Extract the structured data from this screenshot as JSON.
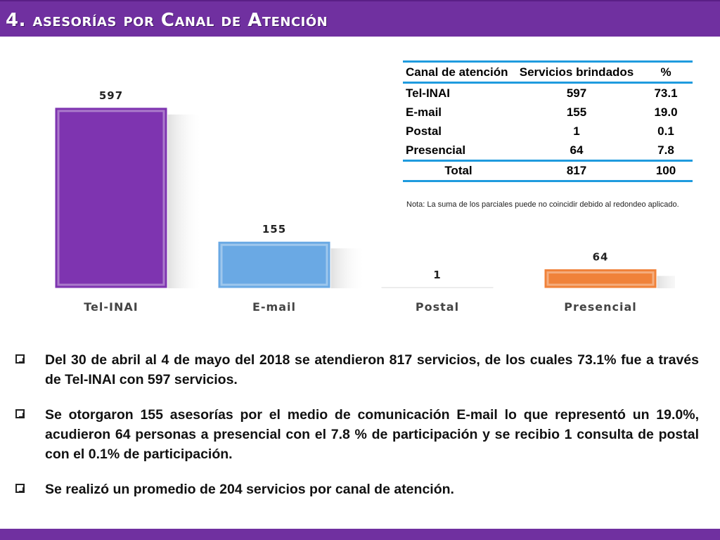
{
  "header": {
    "title": "4. asesorías por Canal de Atención"
  },
  "chart_data": {
    "type": "bar",
    "categories": [
      "Tel-INAI",
      "E-mail",
      "Postal",
      "Presencial"
    ],
    "values": [
      597,
      155,
      1,
      64
    ],
    "colors": [
      "#7e34b0",
      "#6aa9e4",
      "#d9d9d9",
      "#f0823a"
    ],
    "data_labels": [
      "597",
      "155",
      "1",
      "64"
    ],
    "ylim": [
      0,
      650
    ],
    "grid": false,
    "title": "",
    "xlabel": "",
    "ylabel": ""
  },
  "table": {
    "headers": [
      "Canal de atención",
      "Servicios brindados",
      "%"
    ],
    "rows": [
      [
        "Tel-INAI",
        "597",
        "73.1"
      ],
      [
        "E-mail",
        "155",
        "19.0"
      ],
      [
        "Postal",
        "1",
        "0.1"
      ],
      [
        "Presencial",
        "64",
        "7.8"
      ]
    ],
    "total": [
      "Total",
      "817",
      "100"
    ]
  },
  "note": "Nota: La suma de los parciales puede no coincidir debido al redondeo aplicado.",
  "bullets": [
    "Del 30 de abril al 4 de mayo del 2018 se atendieron 817 servicios, de los cuales 73.1% fue a través de Tel-INAI con 597 servicios.",
    "Se otorgaron 155 asesorías por el medio de comunicación E-mail lo que representó un 19.0%, acudieron 64 personas a presencial con el 7.8 % de participación y se recibio 1 consulta de postal con el 0.1% de participación.",
    "Se realizó un promedio de 204 servicios por canal de atención."
  ]
}
